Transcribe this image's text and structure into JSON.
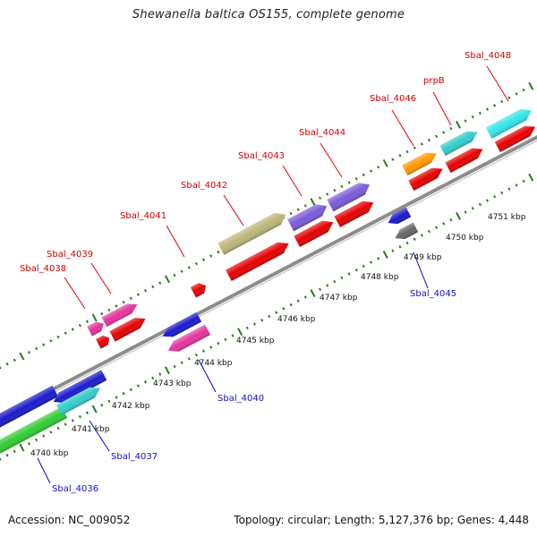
{
  "title": "Shewanella baltica OS155, complete genome",
  "footer": {
    "accession": "Accession: NC_009052",
    "summary": "Topology: circular; Length: 5,127,376 bp; Genes: 4,448"
  },
  "colors": {
    "backbone": "#8c8c8c",
    "tick": "#2a7a1a",
    "label_forward": "#d40000",
    "label_reverse": "#1010c8",
    "leader_forward": "#e00000",
    "leader_reverse": "#0000d0"
  },
  "scale_labels": [
    "4740 kbp",
    "4741 kbp",
    "4742 kbp",
    "4743 kbp",
    "4744 kbp",
    "4745 kbp",
    "4746 kbp",
    "4747 kbp",
    "4748 kbp",
    "4749 kbp",
    "4750 kbp",
    "4751 kbp"
  ],
  "gene_labels": [
    {
      "text": "Sbal_4036",
      "strand": "reverse"
    },
    {
      "text": "Sbal_4037",
      "strand": "reverse"
    },
    {
      "text": "Sbal_4038",
      "strand": "forward"
    },
    {
      "text": "Sbal_4039",
      "strand": "forward"
    },
    {
      "text": "Sbal_4040",
      "strand": "reverse"
    },
    {
      "text": "Sbal_4041",
      "strand": "forward"
    },
    {
      "text": "Sbal_4042",
      "strand": "forward"
    },
    {
      "text": "Sbal_4043",
      "strand": "forward"
    },
    {
      "text": "Sbal_4044",
      "strand": "forward"
    },
    {
      "text": "Sbal_4045",
      "strand": "reverse"
    },
    {
      "text": "Sbal_4046",
      "strand": "forward"
    },
    {
      "text": "prpB",
      "strand": "forward"
    },
    {
      "text": "Sbal_4048",
      "strand": "forward"
    }
  ],
  "features": [
    {
      "name": "cds-green-lower",
      "color": "#33cc33",
      "strand": "reverse"
    },
    {
      "name": "cds-blue-lower",
      "color": "#1a1acc",
      "strand": "reverse"
    },
    {
      "name": "cds-blue-lower-2",
      "color": "#1a1acc",
      "strand": "reverse"
    },
    {
      "name": "cds-cyan-lower",
      "color": "#33cccc",
      "strand": "reverse"
    },
    {
      "name": "cds-magenta-1",
      "color": "#e6349b",
      "strand": "forward"
    },
    {
      "name": "cds-magenta-2",
      "color": "#e6349b",
      "strand": "forward"
    },
    {
      "name": "cds-red-small",
      "color": "#e60000",
      "strand": "forward"
    },
    {
      "name": "cds-red-1",
      "color": "#e60000",
      "strand": "forward"
    },
    {
      "name": "cds-blue-mid",
      "color": "#1a1acc",
      "strand": "reverse"
    },
    {
      "name": "cds-magenta-lower",
      "color": "#e6349b",
      "strand": "reverse"
    },
    {
      "name": "cds-red-tiny",
      "color": "#e60000",
      "strand": "forward"
    },
    {
      "name": "cds-olive",
      "color": "#bdb67a",
      "strand": "forward"
    },
    {
      "name": "cds-red-long",
      "color": "#e60000",
      "strand": "forward"
    },
    {
      "name": "cds-purple-1",
      "color": "#7a5ad8",
      "strand": "forward"
    },
    {
      "name": "cds-purple-2",
      "color": "#7a5ad8",
      "strand": "forward"
    },
    {
      "name": "cds-red-mid-1",
      "color": "#e60000",
      "strand": "forward"
    },
    {
      "name": "cds-red-mid-2",
      "color": "#e60000",
      "strand": "forward"
    },
    {
      "name": "cds-blue-small",
      "color": "#1a1acc",
      "strand": "reverse"
    },
    {
      "name": "cds-grey",
      "color": "#666666",
      "strand": "reverse"
    },
    {
      "name": "cds-orange",
      "color": "#ff9900",
      "strand": "forward"
    },
    {
      "name": "cds-cyan-1",
      "color": "#33cccc",
      "strand": "forward"
    },
    {
      "name": "cds-red-upper-1",
      "color": "#e60000",
      "strand": "forward"
    },
    {
      "name": "cds-red-upper-2",
      "color": "#e60000",
      "strand": "forward"
    },
    {
      "name": "cds-cyan-2",
      "color": "#33e6e6",
      "strand": "forward"
    },
    {
      "name": "cds-red-upper-3",
      "color": "#e60000",
      "strand": "forward"
    }
  ]
}
